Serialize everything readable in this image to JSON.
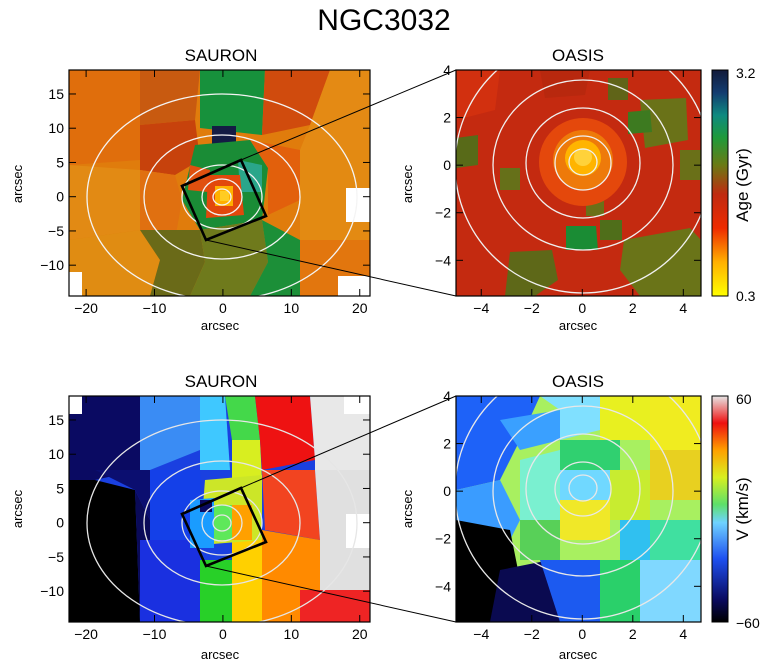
{
  "figure": {
    "title": "NGC3032"
  },
  "chart_data": [
    {
      "type": "heatmap",
      "title": "SAURON",
      "quantity": "Age (Gyr)",
      "xlabel": "arcsec",
      "ylabel": "arcsec",
      "xlim": [
        -22.5,
        21.5
      ],
      "ylim": [
        -14.5,
        18.5
      ],
      "xticks": [
        -20,
        -10,
        0,
        10,
        20
      ],
      "yticks": [
        -10,
        -5,
        0,
        5,
        10,
        15
      ],
      "zoom_box": "square rotated ~30°, ~9 arcsec side, centred near (0, 0)",
      "regions": [
        {
          "x": -18,
          "y": 14,
          "value": 1.0
        },
        {
          "x": -8,
          "y": 14,
          "value": 1.3
        },
        {
          "x": 2,
          "y": 14,
          "value": 1.8
        },
        {
          "x": 12,
          "y": 14,
          "value": 0.9
        },
        {
          "x": 18,
          "y": 10,
          "value": 0.8
        },
        {
          "x": -18,
          "y": 4,
          "value": 0.9
        },
        {
          "x": -10,
          "y": 4,
          "value": 1.0
        },
        {
          "x": 0,
          "y": 9,
          "value": 3.0
        },
        {
          "x": 12,
          "y": 2,
          "value": 0.8
        },
        {
          "x": 0,
          "y": 0,
          "value": 0.4
        },
        {
          "x": -18,
          "y": -7,
          "value": 0.9
        },
        {
          "x": -8,
          "y": -10,
          "value": 1.4
        },
        {
          "x": 5,
          "y": -10,
          "value": 1.5
        },
        {
          "x": 15,
          "y": -9,
          "value": 1.0
        }
      ]
    },
    {
      "type": "heatmap",
      "title": "OASIS",
      "quantity": "Age (Gyr)",
      "xlabel": "arcsec",
      "ylabel": "arcsec",
      "xlim": [
        -5,
        4.7
      ],
      "ylim": [
        -5.5,
        4
      ],
      "xticks": [
        -4,
        -2,
        0,
        2,
        4
      ],
      "yticks": [
        -4,
        -2,
        0,
        2,
        4
      ],
      "colorbar": {
        "label": "Age (Gyr)",
        "min": 0.3,
        "max": 3.2,
        "min_label": "0.3",
        "max_label": "3.2"
      },
      "regions": [
        {
          "x": 0,
          "y": 0.3,
          "value": 0.45
        },
        {
          "x": 2.5,
          "y": 2.2,
          "value": 1.4
        },
        {
          "x": -2.2,
          "y": -4.3,
          "value": 1.4
        },
        {
          "x": 3.5,
          "y": -3.8,
          "value": 1.3
        },
        {
          "x": -3.5,
          "y": -0.5,
          "value": 1.2
        },
        {
          "x": 0.3,
          "y": -2.8,
          "value": 1.8
        }
      ]
    },
    {
      "type": "heatmap",
      "title": "SAURON",
      "quantity": "V (km/s)",
      "xlabel": "arcsec",
      "ylabel": "arcsec",
      "xlim": [
        -22.5,
        21.5
      ],
      "ylim": [
        -14.5,
        18.5
      ],
      "xticks": [
        -20,
        -10,
        0,
        10,
        20
      ],
      "yticks": [
        -10,
        -5,
        0,
        5,
        10,
        15
      ],
      "zoom_box": "square rotated ~30°, ~9 arcsec side, centred near (0, 0)",
      "regions": [
        {
          "x": -18,
          "y": 12,
          "value": -58
        },
        {
          "x": -8,
          "y": 12,
          "value": -30
        },
        {
          "x": 0,
          "y": 14,
          "value": 10
        },
        {
          "x": 8,
          "y": 12,
          "value": 48
        },
        {
          "x": 17,
          "y": 8,
          "value": 60
        },
        {
          "x": -18,
          "y": -5,
          "value": -60
        },
        {
          "x": -8,
          "y": -4,
          "value": -45
        },
        {
          "x": 0,
          "y": -12,
          "value": 15
        },
        {
          "x": 6,
          "y": -7,
          "value": 40
        },
        {
          "x": 16,
          "y": -9,
          "value": 55
        }
      ]
    },
    {
      "type": "heatmap",
      "title": "OASIS",
      "quantity": "V (km/s)",
      "xlabel": "arcsec",
      "ylabel": "arcsec",
      "xlim": [
        -5,
        4.7
      ],
      "ylim": [
        -5.5,
        4
      ],
      "xticks": [
        -4,
        -2,
        0,
        2,
        4
      ],
      "yticks": [
        -4,
        -2,
        0,
        2,
        4
      ],
      "colorbar": {
        "label": "V (km/s)",
        "min": -60,
        "max": 60,
        "min_label": "−60",
        "max_label": "60"
      },
      "regions": [
        {
          "x": -4,
          "y": -4.5,
          "value": -60
        },
        {
          "x": -3.5,
          "y": 2,
          "value": -40
        },
        {
          "x": 0,
          "y": 0,
          "value": 0
        },
        {
          "x": 3,
          "y": 2.5,
          "value": 25
        },
        {
          "x": -1,
          "y": -3.5,
          "value": -10
        },
        {
          "x": 3.8,
          "y": -2,
          "value": -15
        }
      ]
    }
  ]
}
